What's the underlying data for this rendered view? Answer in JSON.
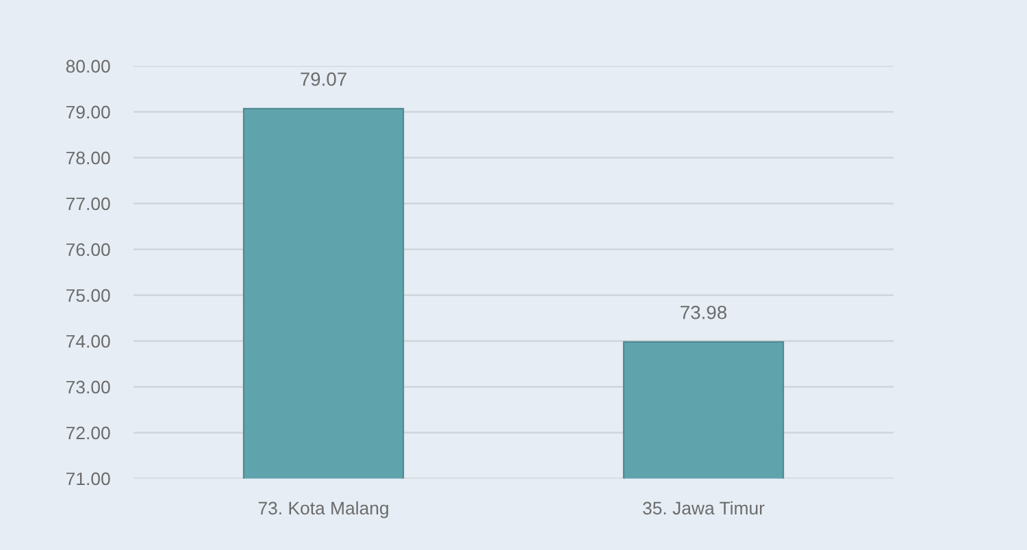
{
  "chart_data": {
    "type": "bar",
    "categories": [
      "73. Kota Malang",
      "35. Jawa Timur"
    ],
    "values": [
      79.07,
      73.98
    ],
    "color": "#5fa3ad",
    "ylim": [
      71,
      80
    ],
    "yticks": [
      {
        "value": 71,
        "label": "71.00"
      },
      {
        "value": 72,
        "label": "72.00"
      },
      {
        "value": 73,
        "label": "73.00"
      },
      {
        "value": 74,
        "label": "74.00"
      },
      {
        "value": 75,
        "label": "75.00"
      },
      {
        "value": 76,
        "label": "76.00"
      },
      {
        "value": 77,
        "label": "77.00"
      },
      {
        "value": 78,
        "label": "78.00"
      },
      {
        "value": 79,
        "label": "79.00"
      },
      {
        "value": 80,
        "label": "80.00"
      }
    ],
    "data_labels": true,
    "grid": "y"
  }
}
